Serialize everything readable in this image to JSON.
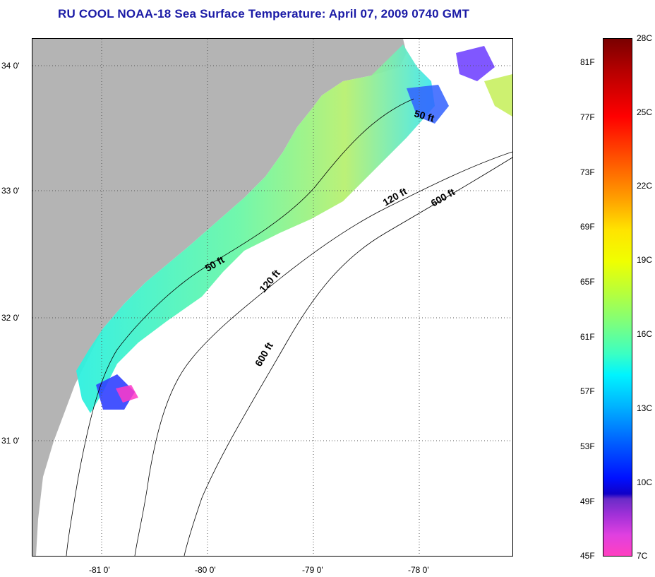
{
  "title": "RU COOL  NOAA-18  Sea Surface Temperature:  April 07, 2009 0740 GMT",
  "map": {
    "lat_labels": [
      "34 0'",
      "33 0'",
      "32 0'",
      "31 0'"
    ],
    "lon_labels": [
      "-81 0'",
      "-80 0'",
      "-79 0'",
      "-78 0'"
    ],
    "contour_labels": [
      "50 ft",
      "120 ft",
      "600 ft",
      "50 ft",
      "120 ft",
      "600 ft"
    ],
    "colors": {
      "land": "#b4b4b4",
      "no_data": "#ffffff",
      "grid": "#555555"
    }
  },
  "colorbar": {
    "celsius_labels": [
      "28C",
      "25C",
      "22C",
      "19C",
      "16C",
      "13C",
      "10C",
      "7C"
    ],
    "fahrenheit_labels": [
      "81F",
      "77F",
      "73F",
      "69F",
      "65F",
      "61F",
      "57F",
      "53F",
      "49F",
      "45F"
    ]
  }
}
